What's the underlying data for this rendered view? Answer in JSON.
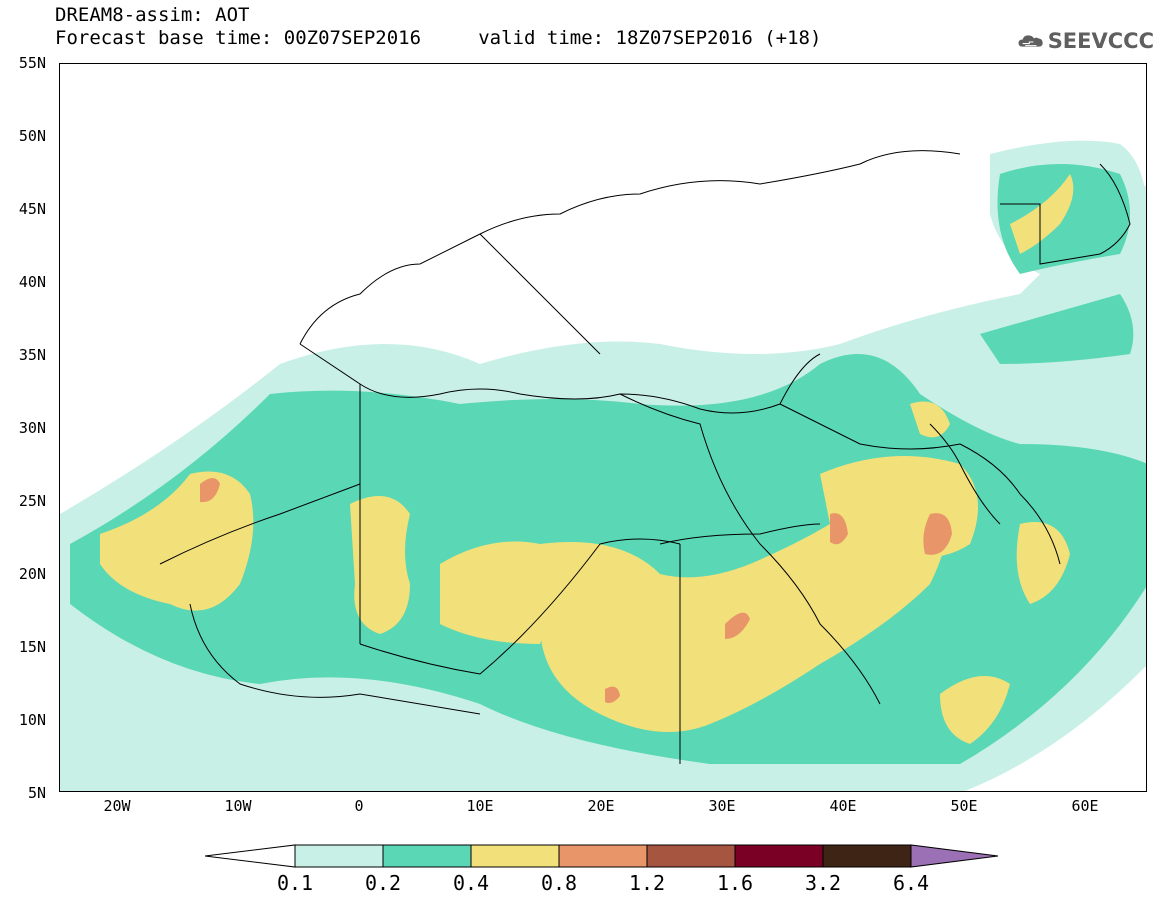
{
  "title": {
    "line1": "DREAM8-assim: AOT",
    "line2": "Forecast base time: 00Z07SEP2016     valid time: 18Z07SEP2016 (+18)"
  },
  "logo": {
    "text": "SEEVCCC",
    "icon": "cloud-icon",
    "color": "#5f5f5f"
  },
  "map": {
    "projection": "lat-lon",
    "lon_range": [
      -25,
      65
    ],
    "lat_range": [
      5,
      55
    ],
    "lat_labels": [
      "55N",
      "50N",
      "45N",
      "40N",
      "35N",
      "30N",
      "25N",
      "20N",
      "15N",
      "10N",
      "5N"
    ],
    "lon_labels": [
      "20W",
      "10W",
      "0",
      "10E",
      "20E",
      "30E",
      "40E",
      "50E",
      "60E"
    ]
  },
  "colorbar": {
    "labels": [
      "0.1",
      "0.2",
      "0.4",
      "0.8",
      "1.2",
      "1.6",
      "3.2",
      "6.4"
    ],
    "colors": [
      "#ffffff",
      "#c8f0e6",
      "#5ad7b4",
      "#f2e17a",
      "#e8956a",
      "#a65541",
      "#7a0025",
      "#3e2415",
      "#9b70b5"
    ],
    "extend": "both"
  }
}
